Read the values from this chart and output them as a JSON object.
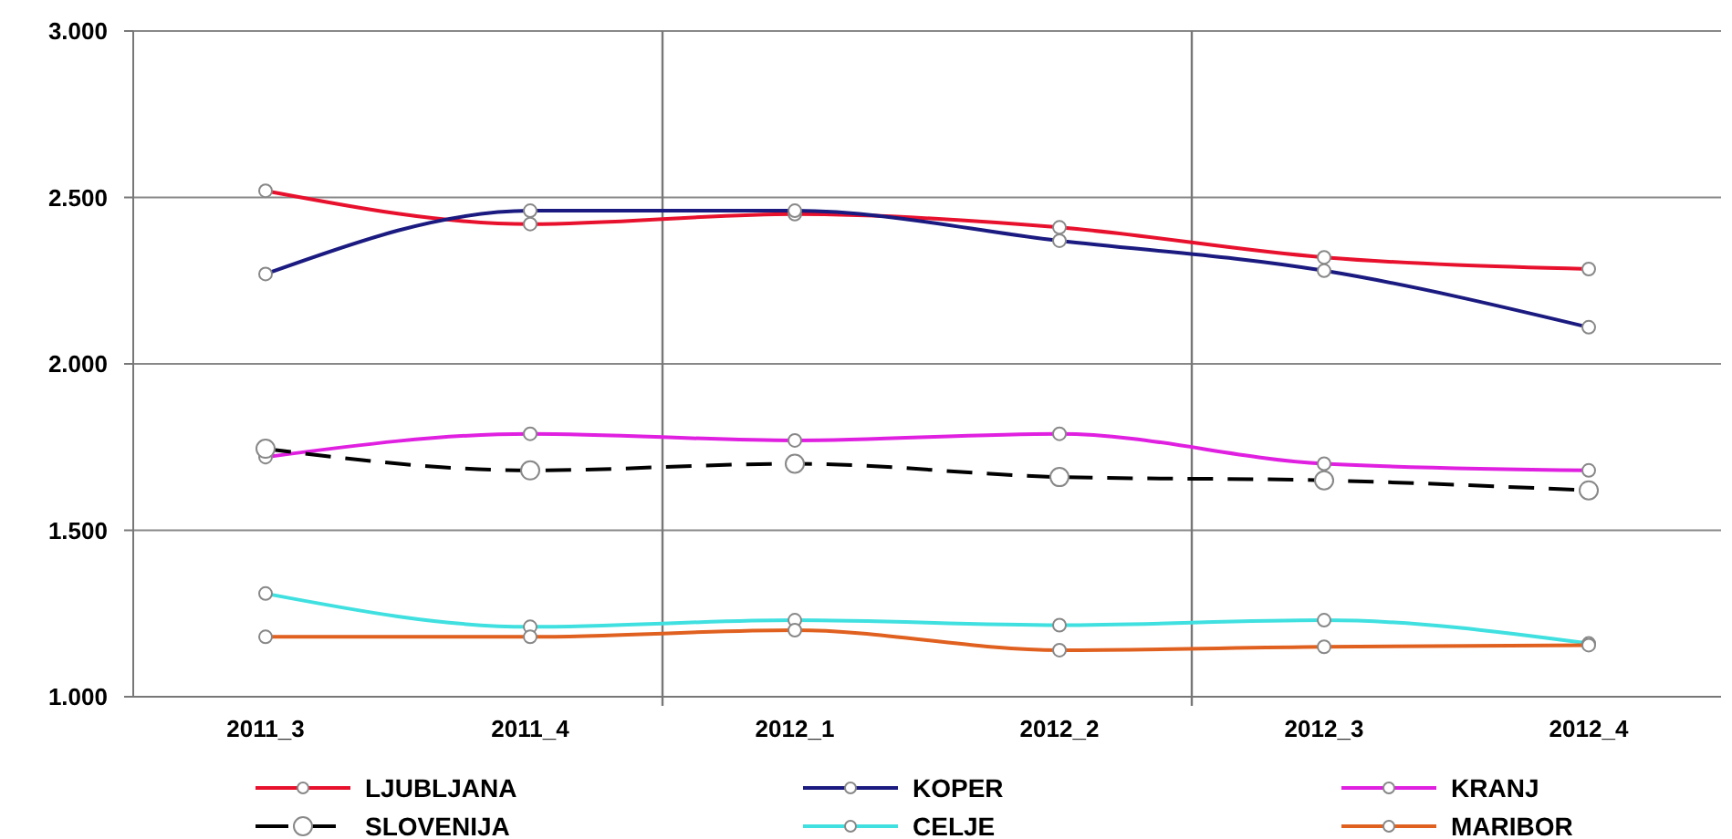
{
  "chart_data": {
    "type": "line",
    "categories": [
      "2011_3",
      "2011_4",
      "2012_1",
      "2012_2",
      "2012_3",
      "2012_4"
    ],
    "series": [
      {
        "name": "LJUBLJANA",
        "color": "#e8112d",
        "values": [
          2.52,
          2.42,
          2.45,
          2.41,
          2.32,
          2.285
        ]
      },
      {
        "name": "KOPER",
        "color": "#1a1a80",
        "values": [
          2.27,
          2.46,
          2.46,
          2.37,
          2.28,
          2.11
        ]
      },
      {
        "name": "KRANJ",
        "color": "#e020e0",
        "values": [
          1.72,
          1.79,
          1.77,
          1.79,
          1.7,
          1.68
        ]
      },
      {
        "name": "SLOVENIJA",
        "color": "#000000",
        "line_style": "dashed",
        "values": [
          1.745,
          1.68,
          1.7,
          1.66,
          1.65,
          1.62
        ]
      },
      {
        "name": "CELJE",
        "color": "#40e0e0",
        "values": [
          1.31,
          1.21,
          1.23,
          1.215,
          1.23,
          1.16
        ]
      },
      {
        "name": "MARIBOR",
        "color": "#e06020",
        "values": [
          1.18,
          1.18,
          1.2,
          1.14,
          1.15,
          1.155
        ]
      }
    ],
    "ylim": [
      1,
      3
    ],
    "yticks": [
      {
        "value": 1,
        "label": "1.000"
      },
      {
        "value": 1.5,
        "label": "1.500"
      },
      {
        "value": 2,
        "label": "2.000"
      },
      {
        "value": 2.5,
        "label": "2.500"
      },
      {
        "value": 3,
        "label": "3.000"
      }
    ],
    "grid": true,
    "legend": "bottom",
    "marker": "circle",
    "line_style": "solid"
  }
}
